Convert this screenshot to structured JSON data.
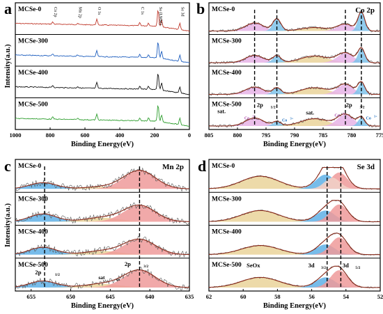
{
  "chart_data": [
    {
      "panel": "a",
      "type": "line",
      "xlabel": "Binding Energy(eV)",
      "ylabel": "Intensity(a.u.)",
      "xlim": [
        1000,
        0
      ],
      "xticks": [
        1000,
        800,
        600,
        400,
        200,
        0
      ],
      "peak_labels": [
        {
          "text": "Co 2p",
          "x": 785
        },
        {
          "text": "Mn 2p",
          "x": 642
        },
        {
          "text": "O 1s",
          "x": 532
        },
        {
          "text": "C 1s",
          "x": 285
        },
        {
          "text": "Se (LMM)",
          "x": 180
        },
        {
          "text": "Se 3d",
          "x": 55
        }
      ],
      "series": [
        {
          "name": "MCSe-0",
          "color": "#c0392b"
        },
        {
          "name": "MCSe-300",
          "color": "#1f5fbf"
        },
        {
          "name": "MCSe-400",
          "color": "#111111"
        },
        {
          "name": "MCSe-500",
          "color": "#2e9e2e"
        }
      ],
      "peaks": [
        {
          "x": 785,
          "h": 0.12
        },
        {
          "x": 642,
          "h": 0.08
        },
        {
          "x": 532,
          "h": 0.32
        },
        {
          "x": 285,
          "h": 0.18
        },
        {
          "x": 235,
          "h": 0.16
        },
        {
          "x": 180,
          "h": 0.95
        },
        {
          "x": 160,
          "h": 0.4
        },
        {
          "x": 55,
          "h": 0.35
        }
      ]
    },
    {
      "panel": "b",
      "type": "line",
      "title": "Co 2p",
      "xlabel": "Binding Energy(eV)",
      "ylabel": "",
      "xlim": [
        805,
        775
      ],
      "xticks": [
        805,
        800,
        795,
        790,
        785,
        780,
        775
      ],
      "series": [
        {
          "name": "MCSe-0"
        },
        {
          "name": "MCSe-300"
        },
        {
          "name": "MCSe-400"
        },
        {
          "name": "MCSe-500"
        }
      ],
      "dashed_lines": [
        797.0,
        793.1,
        781.1,
        778.3
      ],
      "annotations": [
        "sat.",
        "sat.",
        "2p1/2",
        "2p3/2",
        "Co2+",
        "Co3+",
        "Co2+",
        "Co3+"
      ],
      "components": [
        {
          "center": 797.0,
          "width": 1.6,
          "color": "#e6b3e6",
          "heights": [
            0.42,
            0.38,
            0.38,
            0.42
          ]
        },
        {
          "center": 793.1,
          "width": 0.7,
          "color": "#7ec3ea",
          "heights": [
            0.62,
            0.35,
            0.33,
            0.22
          ]
        },
        {
          "center": 786.5,
          "width": 2.4,
          "color": "#ead39a",
          "heights": [
            0.18,
            0.35,
            0.35,
            0.38
          ]
        },
        {
          "center": 781.1,
          "width": 1.4,
          "color": "#e6b3e6",
          "heights": [
            0.35,
            0.5,
            0.52,
            0.6
          ]
        },
        {
          "center": 778.3,
          "width": 0.6,
          "color": "#7ec3ea",
          "heights": [
            0.95,
            0.72,
            0.6,
            0.42
          ]
        }
      ]
    },
    {
      "panel": "c",
      "type": "line",
      "title": "Mn 2p",
      "xlabel": "Binding Energy(eV)",
      "ylabel": "Intensity(a.u.)",
      "xlim": [
        657,
        635
      ],
      "xticks": [
        655,
        650,
        645,
        640,
        635
      ],
      "series": [
        {
          "name": "MCSe-0"
        },
        {
          "name": "MCSe-300"
        },
        {
          "name": "MCSe-400"
        },
        {
          "name": "MCSe-500"
        }
      ],
      "dashed_lines": [
        653.3,
        641.3
      ],
      "annotations": [
        "2p1/2",
        "sat.",
        "sat.",
        "2p3/2"
      ],
      "components": [
        {
          "center": 653.5,
          "width": 1.7,
          "color": "#5fb0e6",
          "heights": [
            0.3,
            0.38,
            0.36,
            0.32
          ]
        },
        {
          "center": 646.0,
          "width": 2.2,
          "color": "#ead39a",
          "heights": [
            0.1,
            0.2,
            0.18,
            0.18
          ]
        },
        {
          "center": 641.3,
          "width": 2.0,
          "color": "#ef9a9a",
          "heights": [
            0.9,
            0.8,
            0.75,
            0.85
          ]
        }
      ]
    },
    {
      "panel": "d",
      "type": "line",
      "title": "Se 3d",
      "xlabel": "Binding  Energy(eV)",
      "ylabel": "",
      "xlim": [
        62,
        52
      ],
      "xticks": [
        62,
        60,
        58,
        56,
        54,
        52
      ],
      "series": [
        {
          "name": "MCSe-0"
        },
        {
          "name": "MCSe-300"
        },
        {
          "name": "MCSe-400"
        },
        {
          "name": "MCSe-500"
        }
      ],
      "dashed_lines": [
        55.1,
        54.3
      ],
      "annotations": [
        "SeOx",
        "3d3/2",
        "3d5/2"
      ],
      "components": [
        {
          "center": 59.0,
          "width": 1.1,
          "color": "#ead39a",
          "heights": [
            0.62,
            0.55,
            0.45,
            0.5
          ]
        },
        {
          "center": 55.2,
          "width": 0.55,
          "color": "#5fb0e6",
          "heights": [
            0.7,
            0.55,
            0.5,
            0.5
          ]
        },
        {
          "center": 54.4,
          "width": 0.5,
          "color": "#ef9a9a",
          "heights": [
            0.8,
            0.85,
            0.85,
            0.85
          ]
        },
        {
          "center": 54.8,
          "width": 0.45,
          "color": "#f3d2c8",
          "heights": [
            0.55,
            0.0,
            0.0,
            0.0
          ]
        }
      ]
    }
  ],
  "panel_letters": [
    "a",
    "b",
    "c",
    "d"
  ],
  "b_labels": {
    "sat1": "sat.",
    "sat2": "sat.",
    "p12": "2p",
    "p12_sub": "1/2",
    "p32": "2p",
    "p32_sub": "3/2",
    "co2a": "Co",
    "co3a": "Co",
    "co2b": "Co",
    "co3b": "Co",
    "sup2": "2+",
    "sup3": "3+"
  },
  "c_labels": {
    "p12": "2p",
    "p12_sub": "1/2",
    "sat_a": "sat",
    "sat_b": "sat",
    "sat_sub": "sat.",
    "p32": "2p",
    "p32_sub": "3/2"
  },
  "d_labels": {
    "seox": "SeOx",
    "d32": "3d",
    "d32_sub": "3/2",
    "d52": "3d",
    "d52_sub": "5/2"
  },
  "colors": {
    "fit_line": "#8b2a1a",
    "raw_line": "#555555",
    "axis": "#000000"
  }
}
